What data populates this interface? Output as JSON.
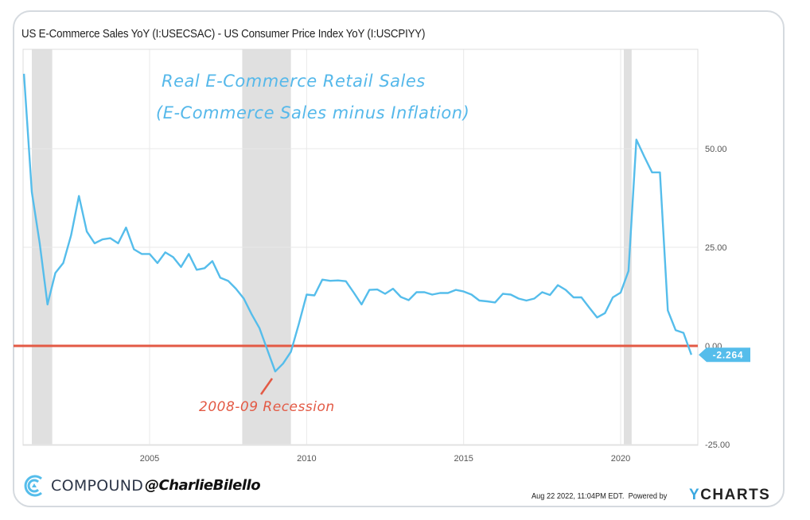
{
  "header": {
    "title": "US E-Commerce Sales YoY (I:USECSAC) - US Consumer Price Index YoY (I:USCPIYY)"
  },
  "annotations": {
    "line1": "Real E-Commerce Retail Sales",
    "line2": "(E-Commerce Sales minus Inflation)",
    "recession": "2008-09 Recession"
  },
  "footer": {
    "brand": "COMPOUND",
    "handle": "@CharlieBilello",
    "timestamp": "Aug 22 2022, 11:04PM EDT.",
    "powered_by": "Powered by",
    "provider_y": "Y",
    "provider_rest": "CHARTS"
  },
  "colors": {
    "series": "#55bdeb",
    "zero_line": "#e35a45",
    "recession_band": "#e0e0e0",
    "grid": "#e8e8e8"
  },
  "chart_data": {
    "type": "line",
    "title": "US E-Commerce Sales YoY (I:USECSAC) - US Consumer Price Index YoY (I:USCPIYY)",
    "xlabel": "",
    "ylabel": "",
    "xlim": [
      2000.8,
      2022.5
    ],
    "ylim": [
      -27,
      75
    ],
    "x_ticks": [
      2005,
      2010,
      2015,
      2020
    ],
    "x_tick_labels": [
      "2005",
      "2010",
      "2015",
      "2020"
    ],
    "y_ticks": [
      -25,
      0,
      25,
      50
    ],
    "y_tick_labels": [
      "-25.00",
      "0.00",
      "25.00",
      "50.00"
    ],
    "y_axis_side": "right",
    "grid": true,
    "legend": "none",
    "last_value_label": "-2.264",
    "reference_line": {
      "y": 0,
      "label": "0.00"
    },
    "recessions": [
      {
        "start": 2001.25,
        "end": 2001.9
      },
      {
        "start": 2007.95,
        "end": 2009.5
      },
      {
        "start": 2020.1,
        "end": 2020.35
      }
    ],
    "series": [
      {
        "name": "Real E-Commerce Retail Sales YoY (%)",
        "x": [
          2001.0,
          2001.25,
          2001.5,
          2001.75,
          2002.0,
          2002.25,
          2002.5,
          2002.75,
          2003.0,
          2003.25,
          2003.5,
          2003.75,
          2004.0,
          2004.25,
          2004.5,
          2004.75,
          2005.0,
          2005.25,
          2005.5,
          2005.75,
          2006.0,
          2006.25,
          2006.5,
          2006.75,
          2007.0,
          2007.25,
          2007.5,
          2007.75,
          2008.0,
          2008.25,
          2008.5,
          2008.75,
          2009.0,
          2009.25,
          2009.5,
          2009.75,
          2010.0,
          2010.25,
          2010.5,
          2010.75,
          2011.0,
          2011.25,
          2011.5,
          2011.75,
          2012.0,
          2012.25,
          2012.5,
          2012.75,
          2013.0,
          2013.25,
          2013.5,
          2013.75,
          2014.0,
          2014.25,
          2014.5,
          2014.75,
          2015.0,
          2015.25,
          2015.5,
          2015.75,
          2016.0,
          2016.25,
          2016.5,
          2016.75,
          2017.0,
          2017.25,
          2017.5,
          2017.75,
          2018.0,
          2018.25,
          2018.5,
          2018.75,
          2019.0,
          2019.25,
          2019.5,
          2019.75,
          2020.0,
          2020.25,
          2020.5,
          2020.75,
          2021.0,
          2021.25,
          2021.5,
          2021.75,
          2022.0,
          2022.25
        ],
        "values": [
          69.0,
          39.0,
          26.0,
          10.5,
          18.5,
          21.0,
          28.0,
          38.0,
          29.0,
          26.0,
          27.0,
          27.3,
          26.0,
          30.0,
          24.5,
          23.3,
          23.3,
          21.0,
          23.7,
          22.5,
          20.0,
          23.3,
          19.3,
          19.7,
          21.5,
          17.3,
          16.5,
          14.5,
          12.0,
          8.0,
          4.5,
          -1.0,
          -6.5,
          -4.5,
          -1.5,
          5.5,
          13.0,
          12.8,
          16.8,
          16.5,
          16.6,
          16.4,
          13.5,
          10.5,
          14.2,
          14.3,
          13.2,
          14.5,
          12.4,
          11.6,
          13.6,
          13.6,
          13.0,
          13.4,
          13.4,
          14.2,
          13.8,
          13.0,
          11.5,
          11.3,
          11.0,
          13.2,
          13.0,
          12.0,
          11.5,
          12.0,
          13.6,
          12.9,
          15.4,
          14.2,
          12.3,
          12.3,
          9.7,
          7.2,
          8.3,
          12.3,
          13.5,
          19.0,
          52.3,
          48.0,
          44.0,
          44.0,
          9.0,
          4.0,
          3.3,
          -2.264
        ]
      }
    ]
  }
}
